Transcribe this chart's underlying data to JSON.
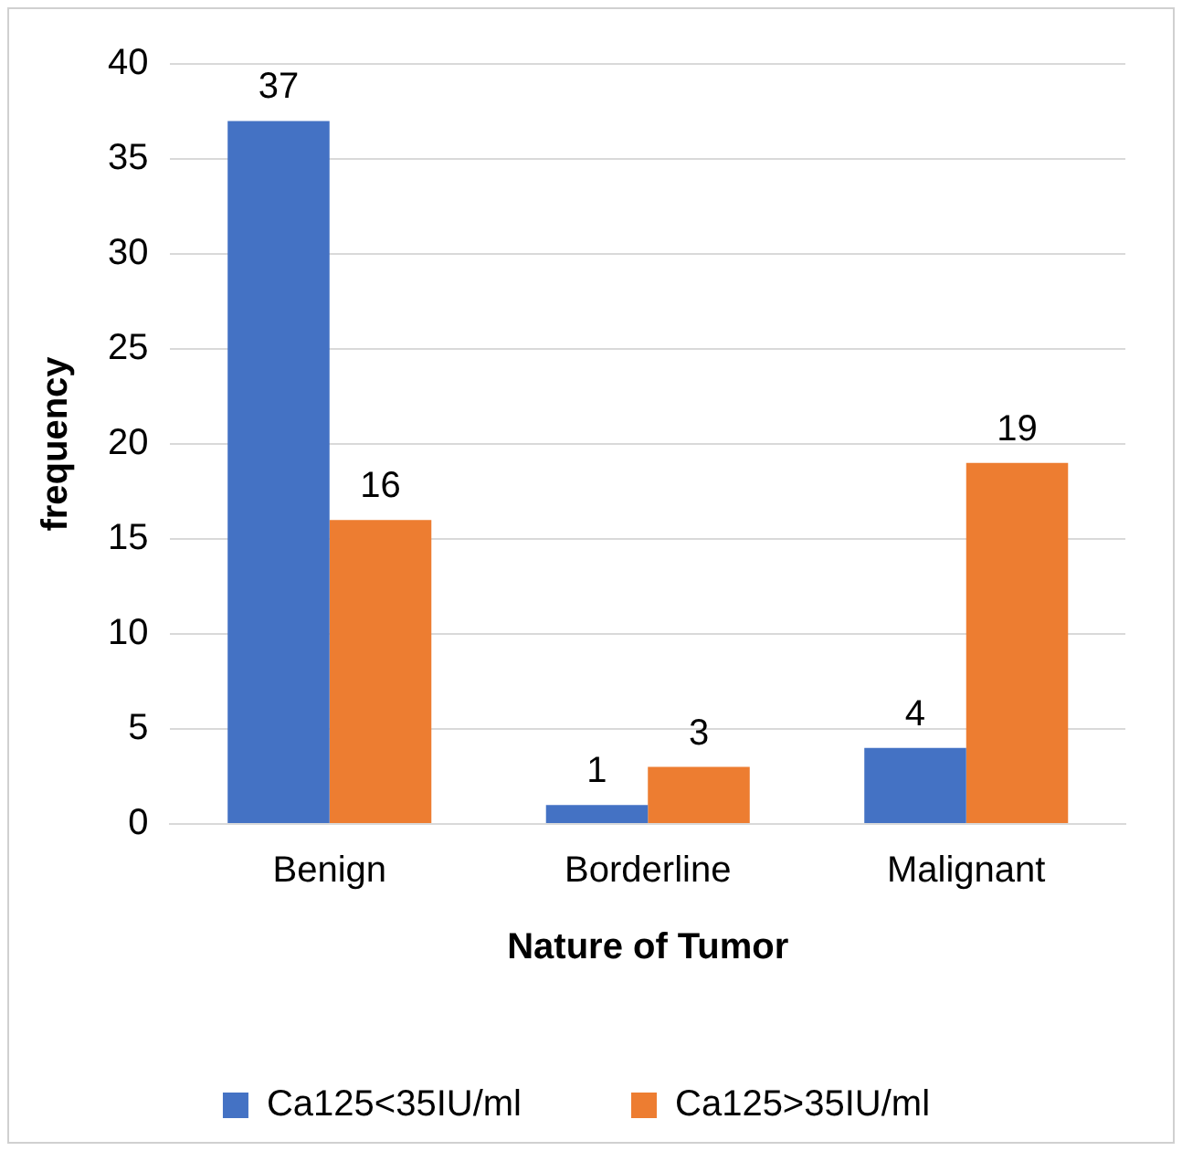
{
  "chart_data": {
    "type": "bar",
    "xlabel": "Nature of Tumor",
    "ylabel": "frequency",
    "categories": [
      "Benign",
      "Borderline",
      "Malignant"
    ],
    "series": [
      {
        "name": "Ca125<35IU/ml",
        "color": "#4472c4",
        "values": [
          37,
          1,
          4
        ]
      },
      {
        "name": "Ca125>35IU/ml",
        "color": "#ed7d31",
        "values": [
          16,
          3,
          19
        ]
      }
    ],
    "ylim": [
      0,
      40
    ],
    "yticks": [
      0,
      5,
      10,
      15,
      20,
      25,
      30,
      35,
      40
    ],
    "grid": "y",
    "legend": "bottom",
    "data_labels": true
  }
}
